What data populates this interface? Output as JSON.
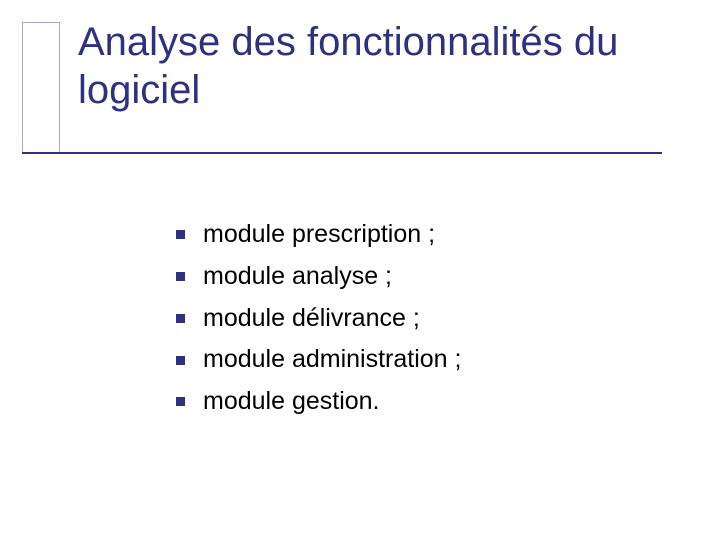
{
  "colors": {
    "title": "#2e3081",
    "rule": "#2e3081",
    "corner_border": "#a7a7d1",
    "bullet": "#2e3081",
    "text": "#000000",
    "background": "#ffffff"
  },
  "title": "Analyse des fonctionnalités du logiciel",
  "items": [
    "module prescription ;",
    "module analyse ;",
    "module délivrance ;",
    "module administration ;",
    "module gestion."
  ],
  "typography": {
    "title_fontsize": 40,
    "body_fontsize": 25,
    "font_family": "Verdana"
  },
  "layout": {
    "slide_w": 720,
    "slide_h": 540,
    "bullet_size": 9
  }
}
